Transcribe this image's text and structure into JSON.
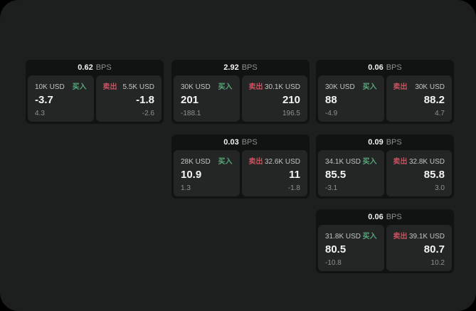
{
  "labels": {
    "buy": "买入",
    "sell": "卖出",
    "bps_unit": "BPS"
  },
  "colors": {
    "buy_green": "#57a77a",
    "sell_red": "#c9525f",
    "window_bg": "#1d1e1e",
    "card_bg": "#111212",
    "panel_bg": "#242626",
    "value_white": "#f5f5f5",
    "muted_gray": "#8f9190"
  },
  "cards": [
    {
      "bps": "0.62",
      "buy": {
        "amount": "10K USD",
        "value": "-3.7",
        "delta": "4.3"
      },
      "sell": {
        "amount": "5.5K USD",
        "value": "-1.8",
        "delta": "-2.6"
      }
    },
    {
      "bps": "2.92",
      "buy": {
        "amount": "30K USD",
        "value": "201",
        "delta": "-188.1"
      },
      "sell": {
        "amount": "30.1K USD",
        "value": "210",
        "delta": "196.5"
      }
    },
    {
      "bps": "0.06",
      "buy": {
        "amount": "30K USD",
        "value": "88",
        "delta": "-4.9"
      },
      "sell": {
        "amount": "30K USD",
        "value": "88.2",
        "delta": "4.7"
      }
    },
    {
      "bps": "0.03",
      "buy": {
        "amount": "28K USD",
        "value": "10.9",
        "delta": "1.3"
      },
      "sell": {
        "amount": "32.6K USD",
        "value": "11",
        "delta": "-1.8"
      }
    },
    {
      "bps": "0.09",
      "buy": {
        "amount": "34.1K USD",
        "value": "85.5",
        "delta": "-3.1"
      },
      "sell": {
        "amount": "32.8K USD",
        "value": "85.8",
        "delta": "3.0"
      }
    },
    {
      "bps": "0.06",
      "buy": {
        "amount": "31.8K USD",
        "value": "80.5",
        "delta": "-10.8"
      },
      "sell": {
        "amount": "39.1K USD",
        "value": "80.7",
        "delta": "10.2"
      }
    }
  ]
}
